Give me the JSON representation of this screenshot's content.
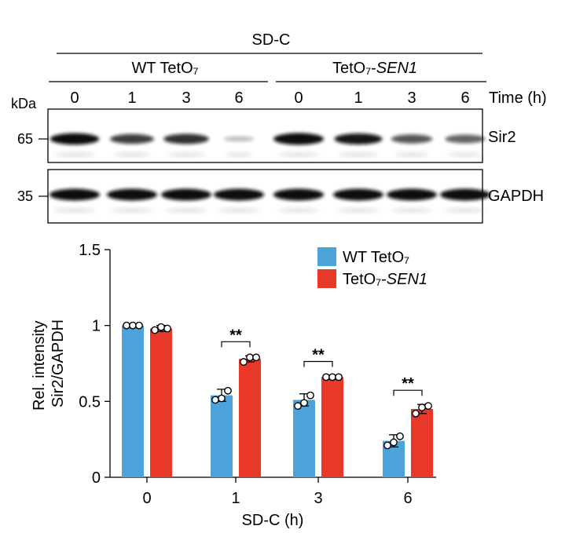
{
  "blot": {
    "condition_label": "SD-C",
    "group_wt": "WT TetO₇",
    "group_sen1_prefix": "TetO₇-",
    "group_sen1_gene": "SEN1",
    "kda_label": "kDa",
    "time_label": "Time (h)",
    "lanes": [
      "0",
      "1",
      "3",
      "6",
      "0",
      "1",
      "3",
      "6"
    ],
    "sir2_intensity": [
      0.95,
      0.72,
      0.78,
      0.12,
      1.0,
      0.9,
      0.6,
      0.55
    ],
    "gapdh_intensity": [
      1,
      1,
      1,
      1,
      1,
      1,
      1,
      1
    ],
    "marker_top": "65",
    "marker_bottom": "35",
    "protein_top": "Sir2",
    "protein_bottom": "GAPDH"
  },
  "chart_data": {
    "type": "bar",
    "categories": [
      "0",
      "1",
      "3",
      "6"
    ],
    "xlabel": "SD-C (h)",
    "ylabel_line1": "Rel. intensity",
    "ylabel_line2": "Sir2/GAPDH",
    "ylim": [
      0,
      1.5
    ],
    "yticks": [
      "0",
      "0.5",
      "1",
      "1.5"
    ],
    "legend_position": "top-right",
    "series": [
      {
        "name": "WT TetO₇",
        "color": "#4da3d9",
        "values": [
          1.0,
          0.54,
          0.51,
          0.24
        ],
        "error": [
          0.0,
          0.04,
          0.04,
          0.04
        ],
        "points": [
          [
            1.0,
            1.0,
            1.0
          ],
          [
            0.51,
            0.52,
            0.57
          ],
          [
            0.47,
            0.49,
            0.54
          ],
          [
            0.21,
            0.23,
            0.27
          ]
        ]
      },
      {
        "name_prefix": "TetO₇-",
        "name_gene": "SEN1",
        "color": "#e8382a",
        "values": [
          0.98,
          0.78,
          0.66,
          0.45
        ],
        "error": [
          0.02,
          0.02,
          0.01,
          0.03
        ],
        "points": [
          [
            0.97,
            0.99,
            0.98
          ],
          [
            0.76,
            0.79,
            0.79
          ],
          [
            0.66,
            0.66,
            0.66
          ],
          [
            0.42,
            0.46,
            0.47
          ]
        ]
      }
    ],
    "significance": [
      null,
      "**",
      "**",
      "**"
    ]
  }
}
